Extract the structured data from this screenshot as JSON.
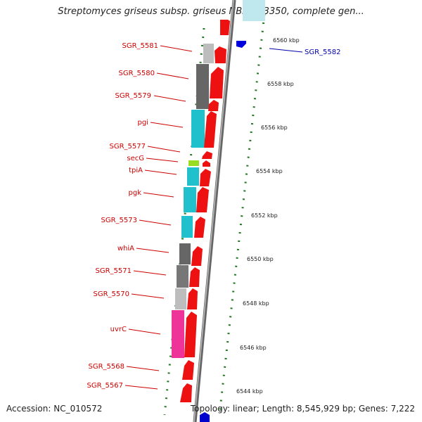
{
  "title": "Streptomyces griseus subsp. griseus NBRC 13350, complete gen...",
  "footer": {
    "accession": "Accession: NC_010572",
    "summary": "Topology: linear; Length: 8,545,929 bp; Genes: 7,222"
  },
  "colors": {
    "cds_fill": "#ee1111",
    "label_left": "#cc0000",
    "label_right": "#0000aa",
    "backbone": "#777777",
    "dots": "#227722"
  },
  "scale_ticks": [
    "6560 kbp",
    "6558 kbp",
    "6556 kbp",
    "6554 kbp",
    "6552 kbp",
    "6550 kbp",
    "6548 kbp",
    "6546 kbp",
    "6544 kbp"
  ],
  "genes_left": [
    "SGR_5581",
    "SGR_5580",
    "SGR_5579",
    "pgi",
    "SGR_5577",
    "secG",
    "tpiA",
    "pgk",
    "SGR_5573",
    "whiA",
    "SGR_5571",
    "SGR_5570",
    "uvrC",
    "SGR_5568",
    "SGR_5567"
  ],
  "genes_right": [
    "SGR_5582"
  ]
}
